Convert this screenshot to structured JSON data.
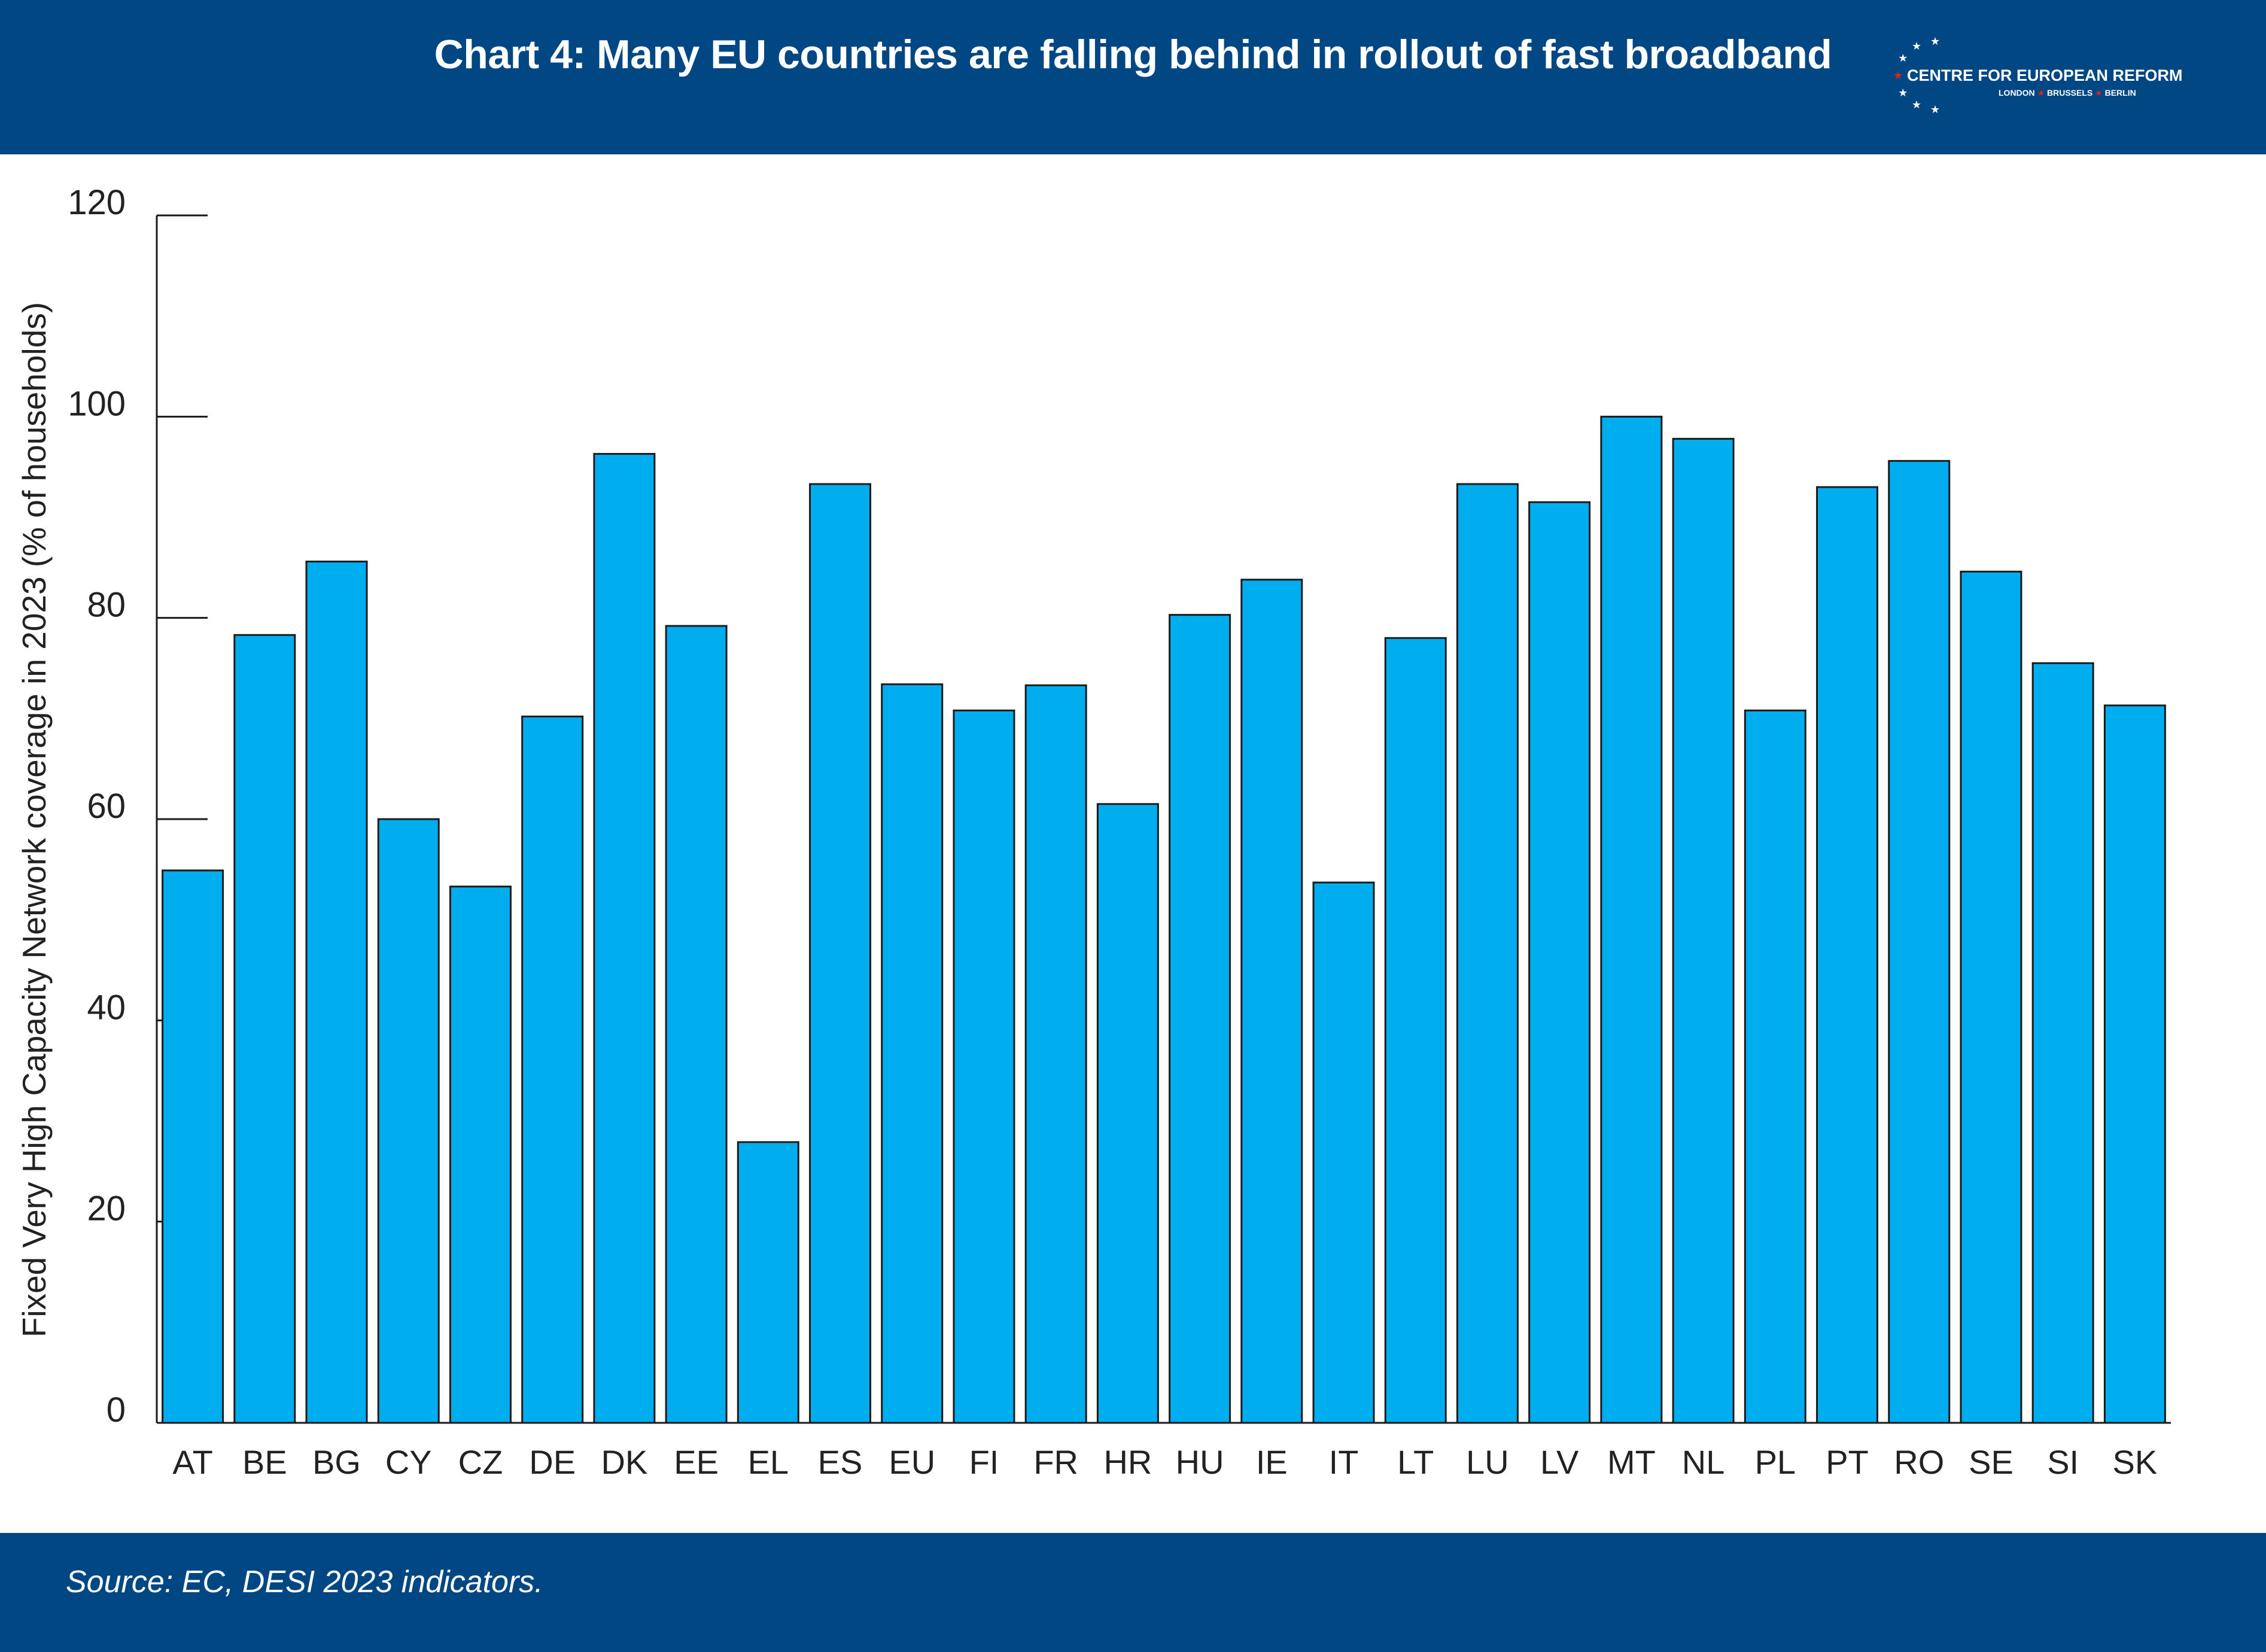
{
  "header": {
    "title": "Chart 4: Many EU countries are falling behind in rollout of fast broadband",
    "background_color": "#004784"
  },
  "logo": {
    "name": "CENTRE FOR EUROPEAN REFORM",
    "city_1": "LONDON",
    "city_2": "BRUSSELS",
    "city_3": "BERLIN",
    "star_color": "#ffffff",
    "accent_color": "#e2231a"
  },
  "footer": {
    "source": "Source: EC, DESI 2023 indicators."
  },
  "chart_data": {
    "type": "bar",
    "title": "Chart 4: Many EU countries are falling behind in rollout of fast broadband",
    "ylabel": "Fixed Very High Capacity Network coverage in 2023 (% of households)",
    "xlabel": "",
    "ylim": [
      0,
      120
    ],
    "yticks": [
      0,
      20,
      40,
      60,
      80,
      100,
      120
    ],
    "grid": false,
    "bar_color": "#00aeef",
    "bar_edge_color": "#1a1a1a",
    "categories": [
      "AT",
      "BE",
      "BG",
      "CY",
      "CZ",
      "DE",
      "DK",
      "EE",
      "EL",
      "ES",
      "EU",
      "FI",
      "FR",
      "HR",
      "HU",
      "IE",
      "IT",
      "LT",
      "LU",
      "LV",
      "MT",
      "NL",
      "PL",
      "PT",
      "RO",
      "SE",
      "SI",
      "SK"
    ],
    "values": [
      54.9,
      78.3,
      85.6,
      60.0,
      53.3,
      70.2,
      96.3,
      79.2,
      27.9,
      93.3,
      73.4,
      70.8,
      73.3,
      61.5,
      80.3,
      83.8,
      53.7,
      78.0,
      93.3,
      91.5,
      100.0,
      97.8,
      70.8,
      93.0,
      95.6,
      84.6,
      75.5,
      71.3
    ]
  }
}
